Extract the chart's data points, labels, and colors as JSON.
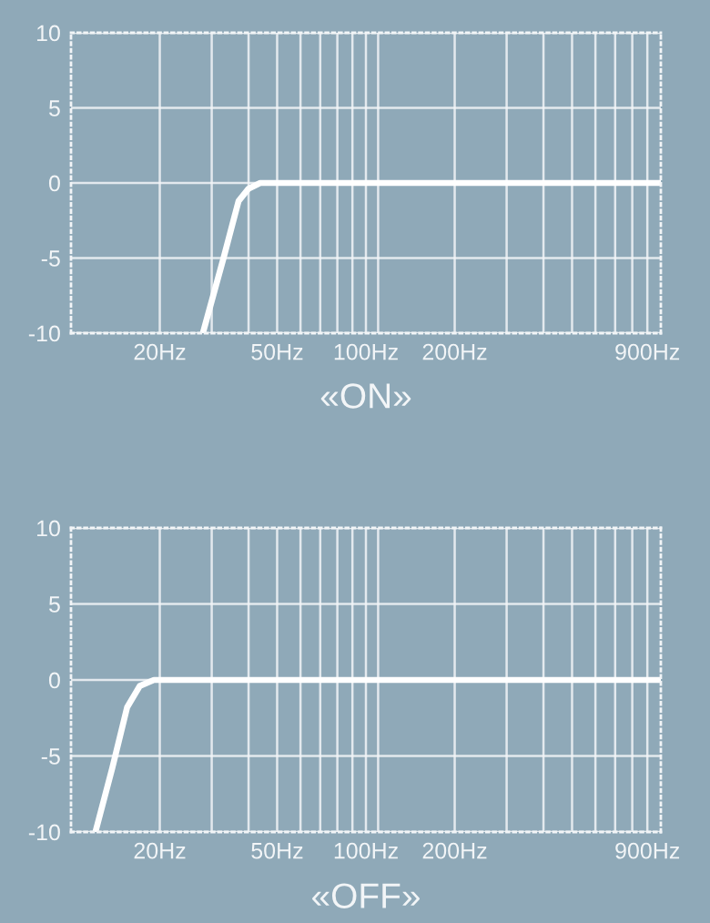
{
  "chart_data": [
    {
      "type": "line",
      "title": "«ON»",
      "log": "x",
      "grid": true,
      "x": [
        28,
        32.9,
        37,
        39.9,
        43.8,
        48,
        1000
      ],
      "series": [
        {
          "color": "#ffffff",
          "values": [
            -10,
            -5,
            -1.2,
            -0.4,
            0,
            0,
            0
          ]
        }
      ],
      "xlim": [
        10,
        1000
      ],
      "ylim": [
        -10,
        10
      ],
      "yticks": [
        -10,
        -5,
        0,
        5,
        10
      ],
      "xticks": [
        {
          "value": 20,
          "label": "20Hz"
        },
        {
          "value": 30,
          "label": null
        },
        {
          "value": 40,
          "label": null
        },
        {
          "value": 50,
          "label": "50Hz"
        },
        {
          "value": 60,
          "label": null
        },
        {
          "value": 70,
          "label": null
        },
        {
          "value": 80,
          "label": null
        },
        {
          "value": 90,
          "label": null
        },
        {
          "value": 100,
          "label": "100Hz"
        },
        {
          "value": 110,
          "label": null
        },
        {
          "value": 200,
          "label": "200Hz"
        },
        {
          "value": 300,
          "label": null
        },
        {
          "value": 400,
          "label": null
        },
        {
          "value": 500,
          "label": null
        },
        {
          "value": 600,
          "label": null
        },
        {
          "value": 700,
          "label": null
        },
        {
          "value": 800,
          "label": null
        },
        {
          "value": 900,
          "label": "900Hz"
        }
      ]
    },
    {
      "type": "line",
      "title": "«OFF»",
      "log": "x",
      "grid": true,
      "x": [
        12.1,
        13.8,
        15.5,
        17.1,
        19.1,
        20,
        1000
      ],
      "series": [
        {
          "color": "#ffffff",
          "values": [
            -10,
            -5.8,
            -1.8,
            -0.4,
            0,
            0,
            0
          ]
        }
      ],
      "xlim": [
        10,
        1000
      ],
      "ylim": [
        -10,
        10
      ],
      "yticks": [
        -10,
        -5,
        0,
        5,
        10
      ],
      "xticks": [
        {
          "value": 20,
          "label": "20Hz"
        },
        {
          "value": 30,
          "label": null
        },
        {
          "value": 40,
          "label": null
        },
        {
          "value": 50,
          "label": "50Hz"
        },
        {
          "value": 60,
          "label": null
        },
        {
          "value": 70,
          "label": null
        },
        {
          "value": 80,
          "label": null
        },
        {
          "value": 90,
          "label": null
        },
        {
          "value": 100,
          "label": "100Hz"
        },
        {
          "value": 110,
          "label": null
        },
        {
          "value": 200,
          "label": "200Hz"
        },
        {
          "value": 300,
          "label": null
        },
        {
          "value": 400,
          "label": null
        },
        {
          "value": 500,
          "label": null
        },
        {
          "value": 600,
          "label": null
        },
        {
          "value": 700,
          "label": null
        },
        {
          "value": 800,
          "label": null
        },
        {
          "value": 900,
          "label": "900Hz"
        }
      ]
    }
  ]
}
